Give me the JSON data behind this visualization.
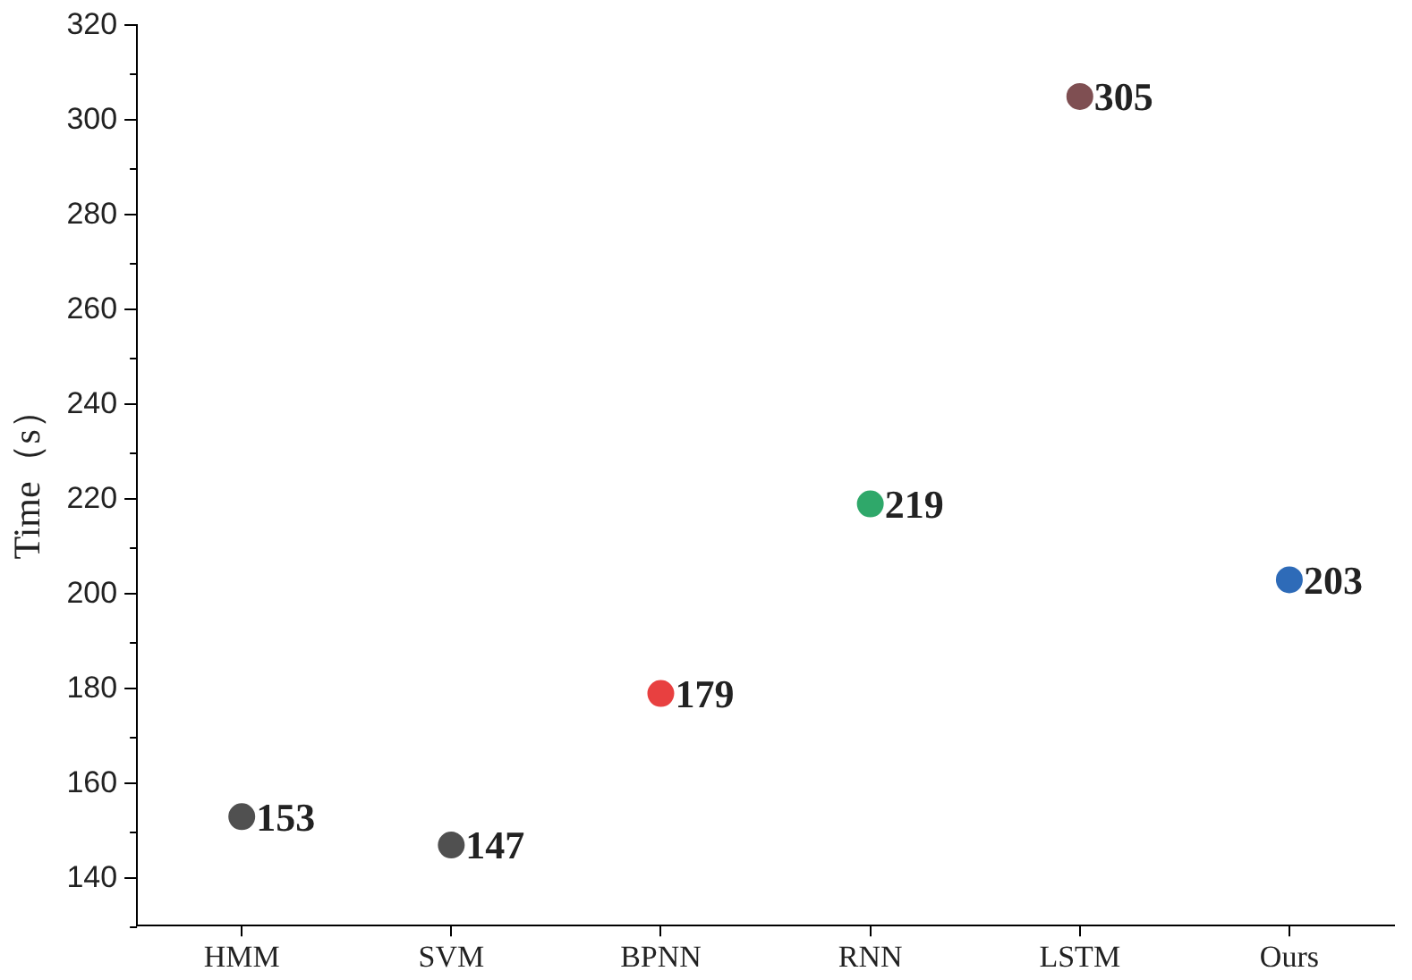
{
  "chart_data": {
    "type": "scatter",
    "ylabel": "Time（s）",
    "categories": [
      "HMM",
      "SVM",
      "BPNN",
      "RNN",
      "LSTM",
      "Ours"
    ],
    "values": [
      153,
      147,
      179,
      219,
      305,
      203
    ],
    "colors": [
      "#505050",
      "#505050",
      "#e84040",
      "#2fa86a",
      "#7f4f52",
      "#2e6bb8"
    ],
    "ylim": [
      130,
      320
    ],
    "yticks": [
      140,
      160,
      180,
      200,
      220,
      240,
      260,
      280,
      300,
      320
    ],
    "grid": false,
    "legend": false,
    "marker": "circle",
    "data_labels": true
  }
}
